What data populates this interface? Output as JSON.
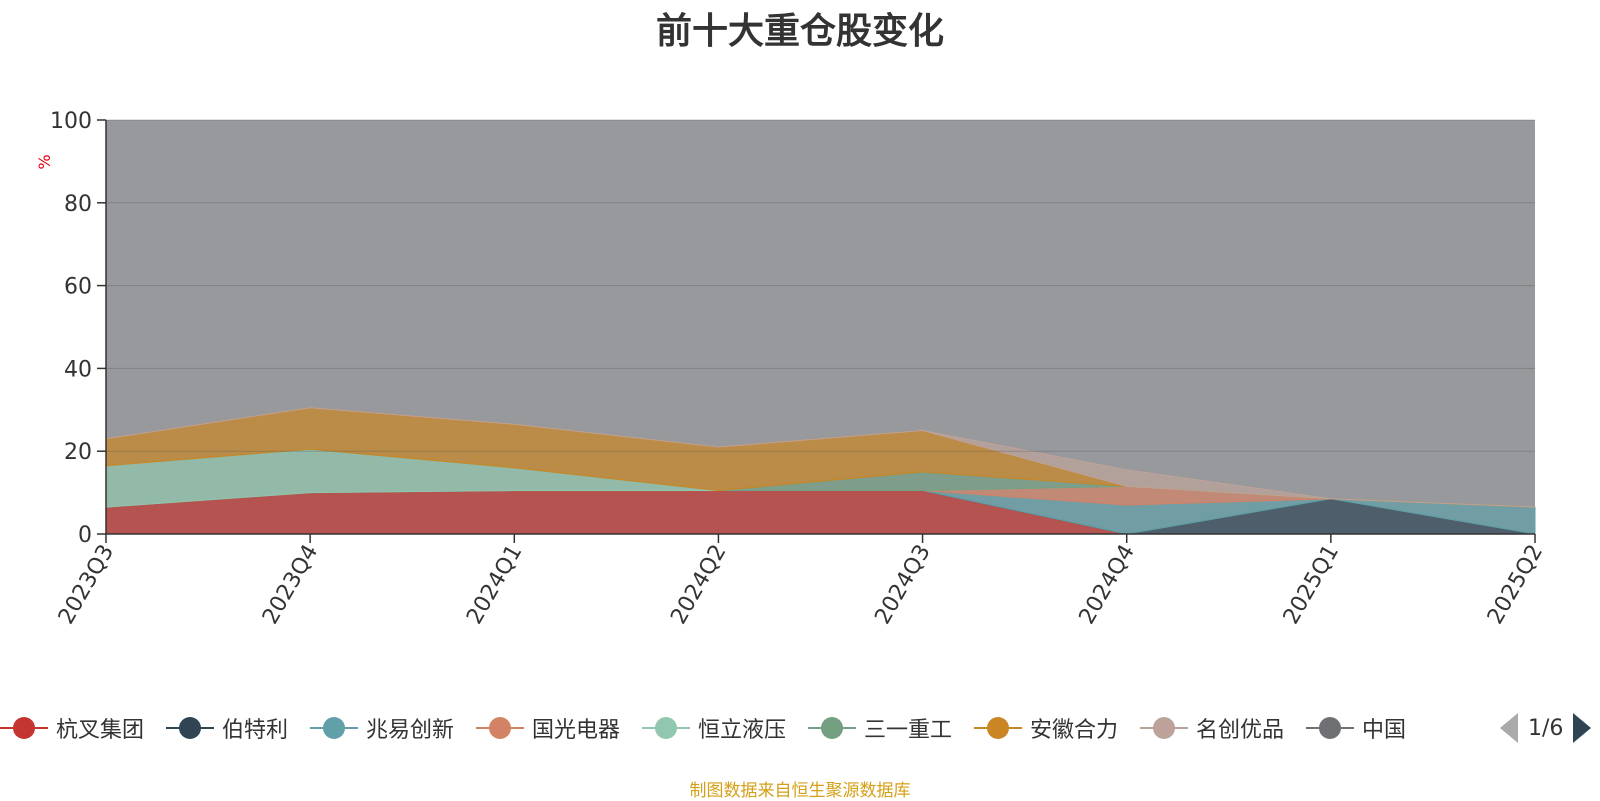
{
  "title": "前十大重仓股变化",
  "source_note": "制图数据来自恒生聚源数据库",
  "legend_page": "1/6",
  "chart_data": {
    "type": "area",
    "stacked": true,
    "ylabel": "%",
    "ylim": [
      0,
      100
    ],
    "yticks": [
      0,
      20,
      40,
      60,
      80,
      100
    ],
    "grid": true,
    "legend_position": "bottom",
    "background_color": "#98999d",
    "categories": [
      "2023Q3",
      "2023Q4",
      "2024Q1",
      "2024Q2",
      "2024Q3",
      "2024Q4",
      "2025Q1",
      "2025Q2"
    ],
    "series": [
      {
        "name": "杭叉集团",
        "color": "#c23531",
        "values": [
          6.5,
          10.0,
          10.5,
          10.5,
          10.5,
          0,
          0,
          0
        ]
      },
      {
        "name": "伯特利",
        "color": "#2f4554",
        "values": [
          0,
          0,
          0,
          0,
          0,
          0,
          8.5,
          0
        ]
      },
      {
        "name": "兆易创新",
        "color": "#61a0a8",
        "values": [
          0,
          0,
          0,
          0,
          0,
          7.0,
          0,
          6.5
        ]
      },
      {
        "name": "国光电器",
        "color": "#d48265",
        "values": [
          0,
          0,
          0,
          0,
          0,
          4.5,
          0,
          0
        ]
      },
      {
        "name": "恒立液压",
        "color": "#91c7ae",
        "values": [
          10.0,
          10.5,
          5.5,
          0,
          0,
          0,
          0,
          0
        ]
      },
      {
        "name": "三一重工",
        "color": "#749f83",
        "values": [
          0,
          0,
          0,
          0,
          4.5,
          0,
          0,
          0
        ]
      },
      {
        "name": "安徽合力",
        "color": "#ca8622",
        "values": [
          6.5,
          10.0,
          10.5,
          10.5,
          10.0,
          0,
          0,
          0
        ]
      },
      {
        "name": "名创优品",
        "color": "#bda29a",
        "values": [
          0,
          0,
          0,
          0,
          0,
          4.0,
          0,
          0
        ]
      }
    ]
  },
  "legend": [
    {
      "label": "杭叉集团",
      "color": "#c23531"
    },
    {
      "label": "伯特利",
      "color": "#2f4554"
    },
    {
      "label": "兆易创新",
      "color": "#61a0a8"
    },
    {
      "label": "国光电器",
      "color": "#d48265"
    },
    {
      "label": "恒立液压",
      "color": "#91c7ae"
    },
    {
      "label": "三一重工",
      "color": "#749f83"
    },
    {
      "label": "安徽合力",
      "color": "#ca8622"
    },
    {
      "label": "名创优品",
      "color": "#bda29a"
    },
    {
      "label": "中国",
      "color": "#6e7074"
    }
  ]
}
